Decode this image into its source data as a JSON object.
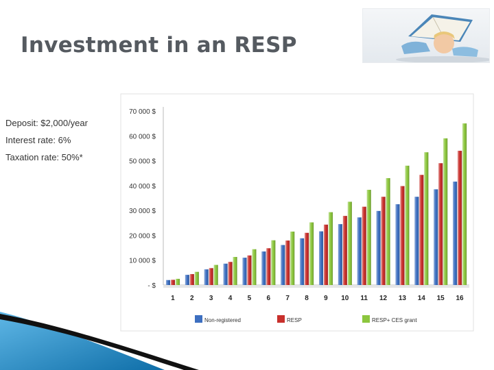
{
  "slide": {
    "title": "Investment in an RESP",
    "params": {
      "deposit": "Deposit: $2,000/year",
      "interest": "Interest rate: 6%",
      "taxation": "Taxation rate:  50%*"
    }
  },
  "colors": {
    "title": "#555a60",
    "non_registered": "#3d6fc0",
    "resp": "#c8302c",
    "resp_grant": "#8cc63e",
    "swoosh_blue": "#1f87c4",
    "swoosh_black": "#111111"
  },
  "chart_data": {
    "type": "bar",
    "categories": [
      "1",
      "2",
      "3",
      "4",
      "5",
      "6",
      "7",
      "8",
      "9",
      "10",
      "11",
      "12",
      "13",
      "14",
      "15",
      "16"
    ],
    "ylim": [
      0,
      70000
    ],
    "ytick_labels": [
      "- $",
      "10 000 $",
      "20 000 $",
      "30 000 $",
      "40 000 $",
      "50 000 $",
      "60 000 $",
      "70 000 $"
    ],
    "grid": false,
    "legend_position": "bottom",
    "series": [
      {
        "name": "Non-registered",
        "color": "#3d6fc0",
        "values": [
          2000,
          4100,
          6300,
          8600,
          11000,
          13500,
          16100,
          18800,
          21600,
          24500,
          27200,
          29800,
          32500,
          35500,
          38500,
          41600
        ]
      },
      {
        "name": "RESP",
        "color": "#c8302c",
        "values": [
          2100,
          4400,
          6800,
          9300,
          11900,
          14800,
          17900,
          21000,
          24300,
          27800,
          31500,
          35500,
          39800,
          44300,
          49000,
          54000
        ]
      },
      {
        "name": "RESP+ CES grant",
        "color": "#8cc63e",
        "values": [
          2500,
          5300,
          8100,
          11300,
          14400,
          18000,
          21500,
          25200,
          29300,
          33500,
          38300,
          43000,
          48000,
          53400,
          59000,
          65000
        ]
      }
    ]
  }
}
